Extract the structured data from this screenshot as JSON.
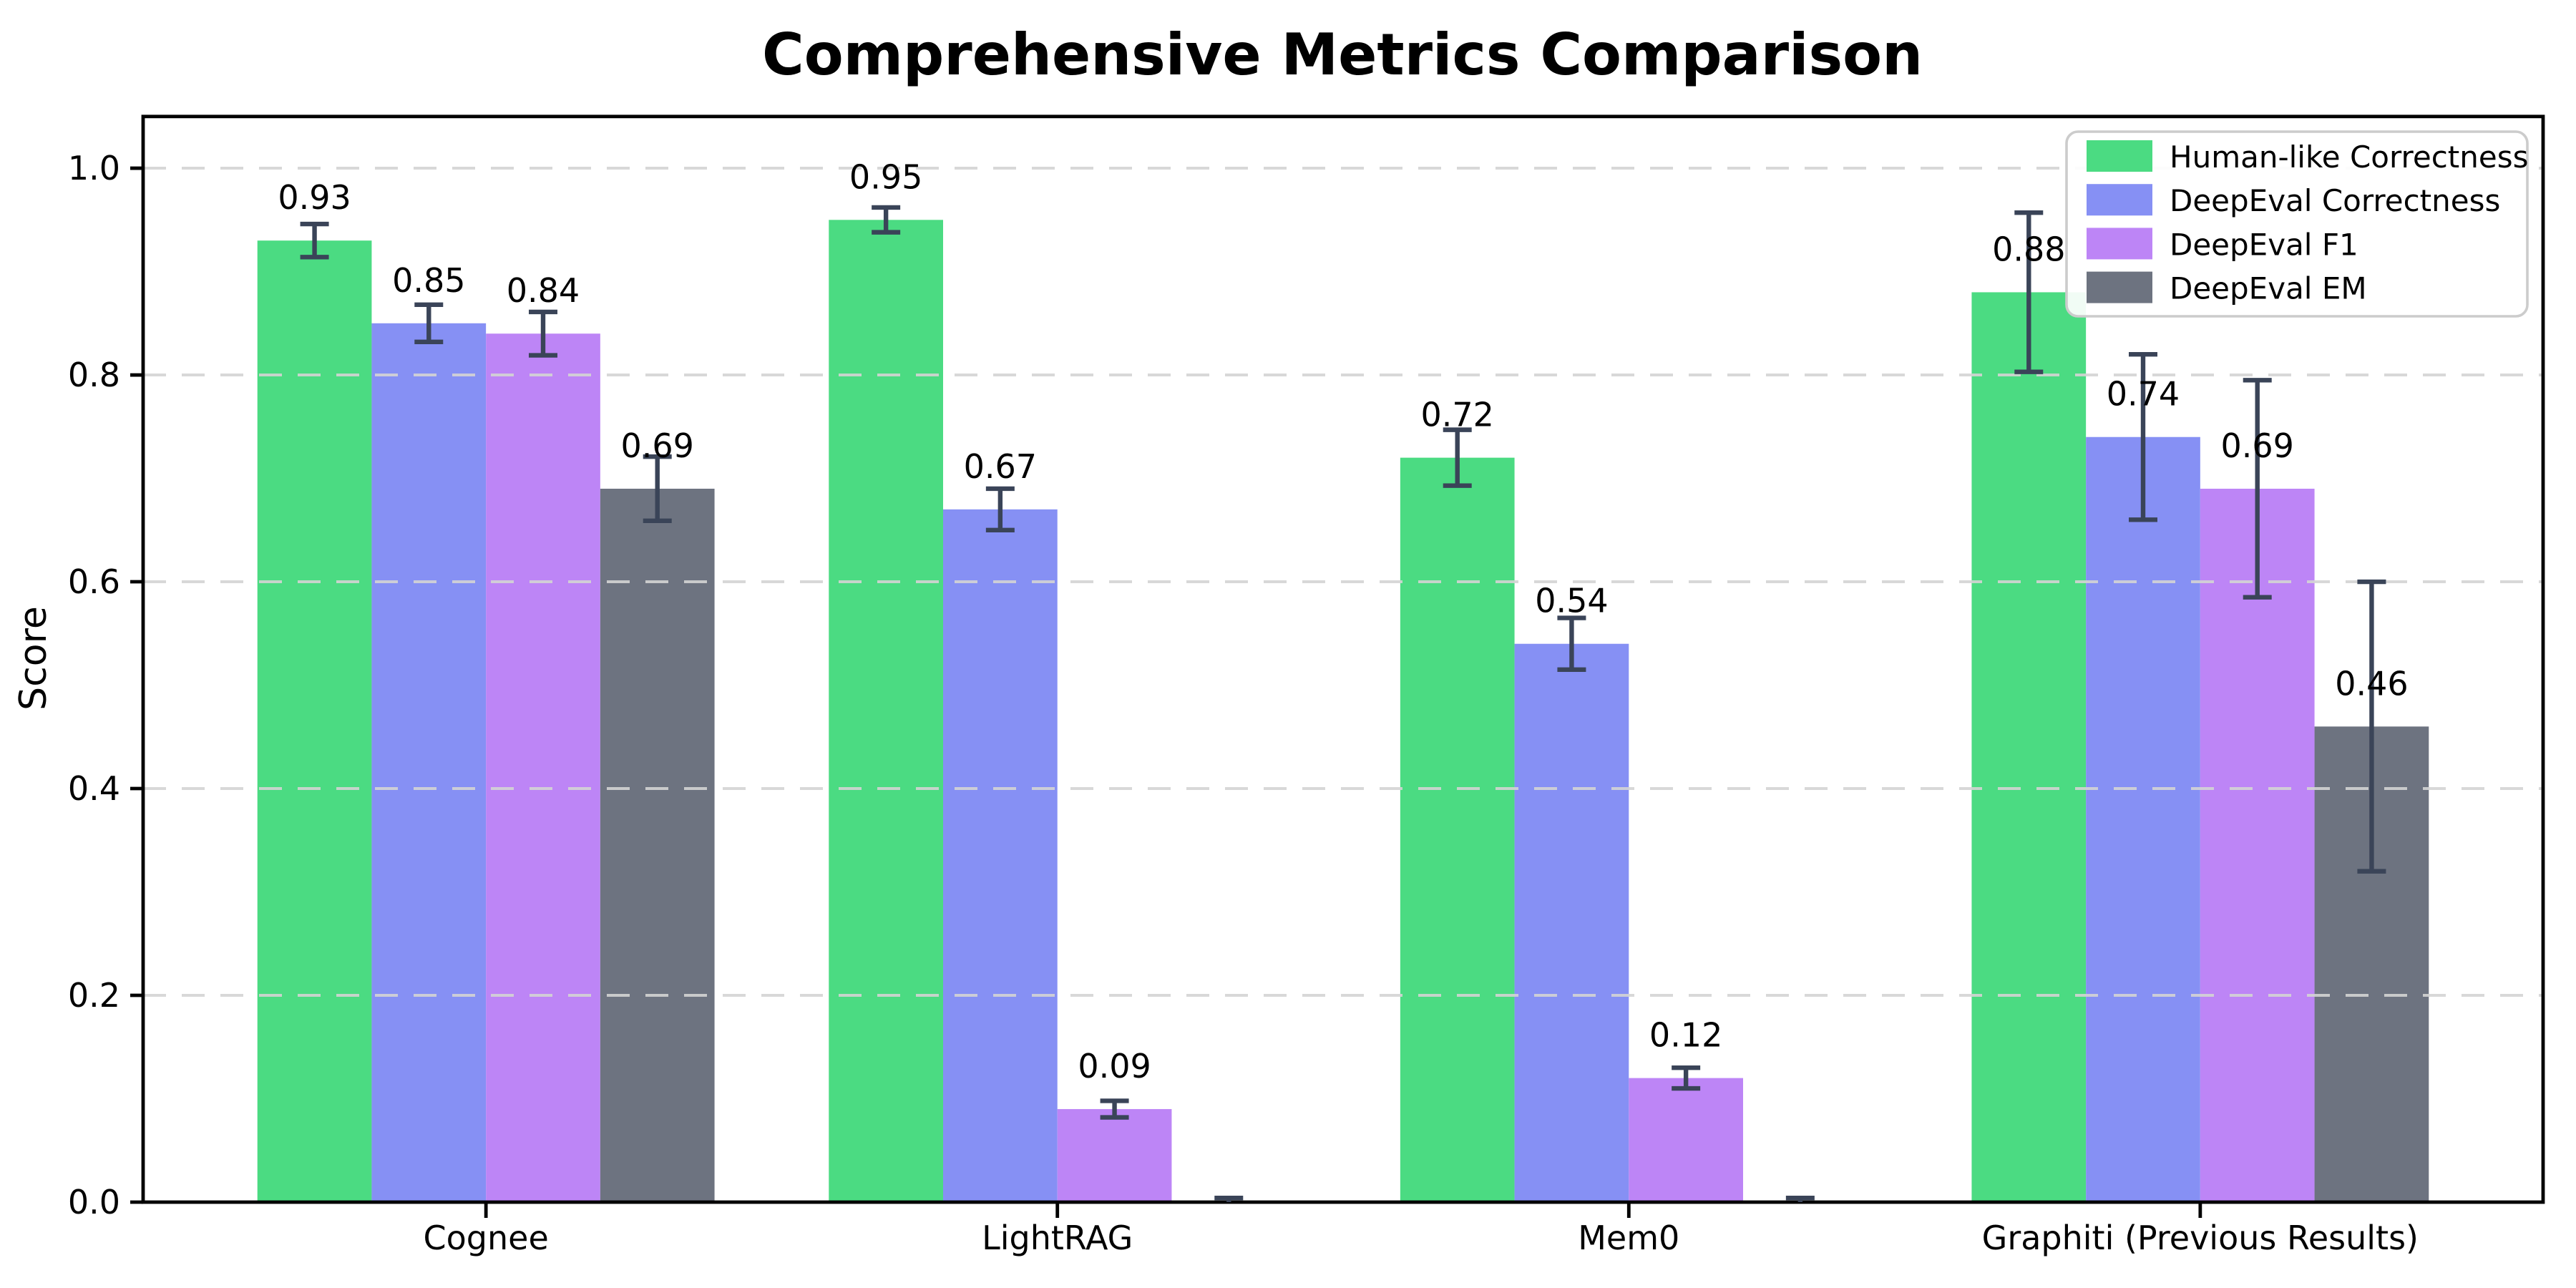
{
  "page": {
    "background": "#ffffff"
  },
  "chart_data": {
    "type": "bar",
    "title": "Comprehensive Metrics Comparison",
    "xlabel": "",
    "ylabel": "Score",
    "categories": [
      "Cognee",
      "LightRAG",
      "Mem0",
      "Graphiti (Previous Results)"
    ],
    "yticks": [
      0.0,
      0.2,
      0.4,
      0.6,
      0.8,
      1.0
    ],
    "ytick_labels": [
      "0.0",
      "0.2",
      "0.4",
      "0.6",
      "0.8",
      "1.0"
    ],
    "ylim": [
      0.0,
      1.05
    ],
    "xlim": [
      -0.6,
      3.6
    ],
    "bar_width": 0.2,
    "group_offsets": [
      -0.3,
      -0.1,
      0.1,
      0.3
    ],
    "grid": {
      "axis": "y",
      "style": "dashed",
      "color": "#d4d4d4",
      "on_top_of_bars": true
    },
    "legend": {
      "position": "upper-right",
      "border_color": "#cccccc",
      "background": "#ffffff"
    },
    "error_bar_color": "#3a4458",
    "axis_color": "#000000",
    "series": [
      {
        "name": "Human-like Correctness",
        "color": "#4bdb82",
        "values": [
          0.93,
          0.95,
          0.72,
          0.88
        ],
        "errors": [
          0.016,
          0.012,
          0.027,
          0.077
        ],
        "labels": [
          "0.93",
          "0.95",
          "0.72",
          "0.88"
        ]
      },
      {
        "name": "DeepEval Correctness",
        "color": "#8690f4",
        "values": [
          0.85,
          0.67,
          0.54,
          0.74
        ],
        "errors": [
          0.018,
          0.02,
          0.025,
          0.08
        ],
        "labels": [
          "0.85",
          "0.67",
          "0.54",
          "0.74"
        ]
      },
      {
        "name": "DeepEval F1",
        "color": "#bd85f6",
        "values": [
          0.84,
          0.09,
          0.12,
          0.69
        ],
        "errors": [
          0.021,
          0.008,
          0.01,
          0.105
        ],
        "labels": [
          "0.84",
          "0.09",
          "0.12",
          "0.69"
        ]
      },
      {
        "name": "DeepEval EM",
        "color": "#6d7380",
        "values": [
          0.69,
          0.0,
          0.0,
          0.46
        ],
        "errors": [
          0.031,
          0.004,
          0.004,
          0.14
        ],
        "labels": [
          "0.69",
          "",
          "",
          "0.46"
        ]
      }
    ]
  }
}
